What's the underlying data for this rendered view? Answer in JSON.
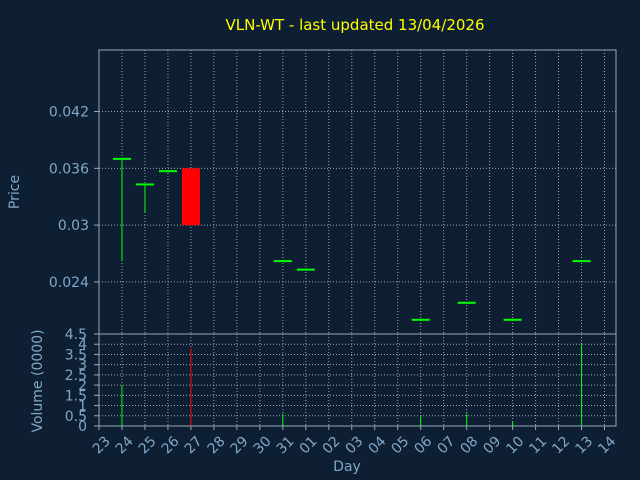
{
  "title": "VLN-WT - last updated 13/04/2026",
  "colors": {
    "background": "#0f1f33",
    "text": "#7fa7c8",
    "title": "#ffff00",
    "grid": "#9aa6b4",
    "up": "#00ff00",
    "down": "#ff0000",
    "axis": "#cfd8e0"
  },
  "chart_data": [
    {
      "type": "candlestick",
      "ylabel": "Price",
      "ylim": [
        0.0185,
        0.0485
      ],
      "yticks": [
        "0.024",
        "0.03",
        "0.036",
        "0.042"
      ],
      "grid": true,
      "x_tick_labels": [
        "23",
        "24",
        "25",
        "26",
        "27",
        "28",
        "29",
        "30",
        "31",
        "01",
        "02",
        "03",
        "04",
        "05",
        "06",
        "07",
        "08",
        "09",
        "10",
        "11",
        "12",
        "13",
        "14"
      ],
      "candles": [
        {
          "day": "24",
          "open": 0.037,
          "high": 0.037,
          "low": 0.0262,
          "close": 0.037,
          "color": "up"
        },
        {
          "day": "25",
          "open": 0.0343,
          "high": 0.0343,
          "low": 0.0313,
          "close": 0.0343,
          "color": "up"
        },
        {
          "day": "26",
          "open": 0.0357,
          "high": 0.0357,
          "low": 0.0357,
          "close": 0.0357,
          "color": "up"
        },
        {
          "day": "27",
          "open": 0.036,
          "high": 0.036,
          "low": 0.03,
          "close": 0.03,
          "color": "down"
        },
        {
          "day": "31",
          "open": 0.0262,
          "high": 0.0262,
          "low": 0.0262,
          "close": 0.0262,
          "color": "up"
        },
        {
          "day": "01",
          "open": 0.0253,
          "high": 0.0253,
          "low": 0.0253,
          "close": 0.0253,
          "color": "up"
        },
        {
          "day": "06",
          "open": 0.02,
          "high": 0.02,
          "low": 0.02,
          "close": 0.02,
          "color": "up"
        },
        {
          "day": "08",
          "open": 0.0218,
          "high": 0.0218,
          "low": 0.0218,
          "close": 0.0218,
          "color": "up"
        },
        {
          "day": "10",
          "open": 0.02,
          "high": 0.02,
          "low": 0.02,
          "close": 0.02,
          "color": "up"
        },
        {
          "day": "13",
          "open": 0.0262,
          "high": 0.0262,
          "low": 0.0262,
          "close": 0.0262,
          "color": "up"
        }
      ]
    },
    {
      "type": "bar",
      "ylabel": "Volume (0000)",
      "xlabel": "Day",
      "ylim": [
        0,
        4.5
      ],
      "yticks": [
        "0",
        "0.5",
        "1",
        "1.5",
        "2",
        "2.5",
        "3",
        "3.5",
        "4",
        "4.5"
      ],
      "grid": true,
      "bars": [
        {
          "day": "24",
          "value": 2.0,
          "color": "up"
        },
        {
          "day": "27",
          "value": 3.8,
          "color": "down"
        },
        {
          "day": "31",
          "value": 0.6,
          "color": "up"
        },
        {
          "day": "06",
          "value": 0.5,
          "color": "up"
        },
        {
          "day": "08",
          "value": 0.6,
          "color": "up"
        },
        {
          "day": "10",
          "value": 0.2,
          "color": "up"
        },
        {
          "day": "13",
          "value": 4.0,
          "color": "up"
        }
      ]
    }
  ]
}
